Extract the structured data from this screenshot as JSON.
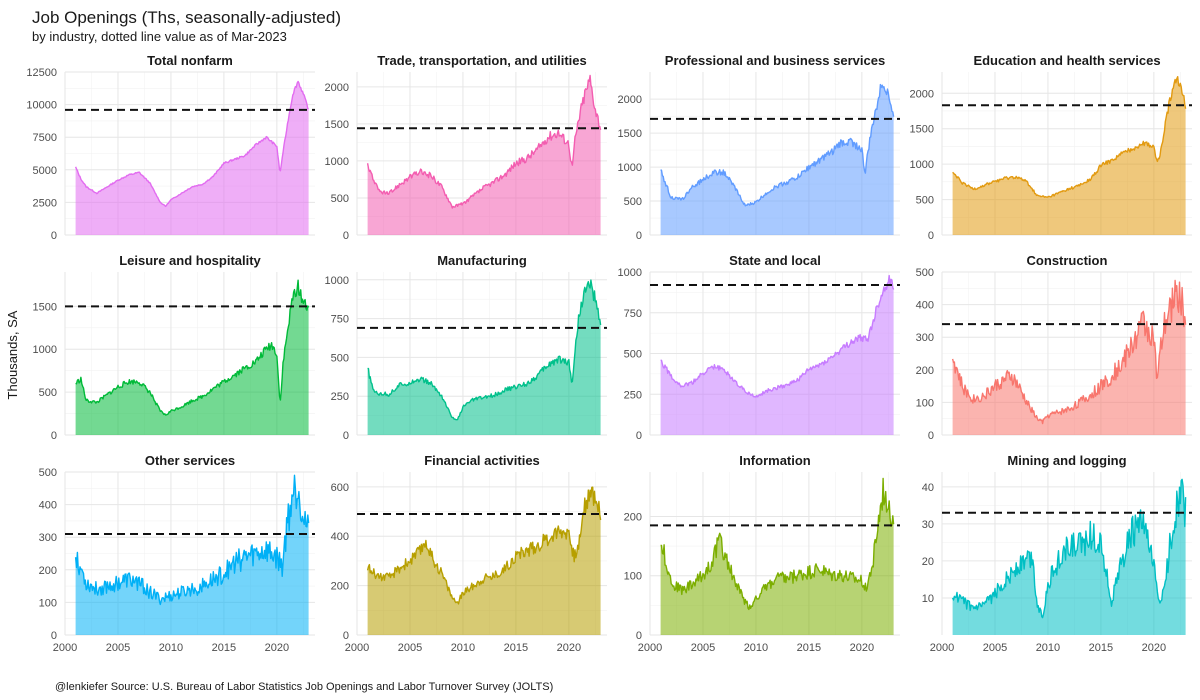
{
  "title": "Job Openings (Ths, seasonally-adjusted)",
  "subtitle": "by industry, dotted line value as of Mar-2023",
  "ylabel": "Thousands, SA",
  "caption": "@lenkiefer Source: U.S. Bureau of Labor Statistics Job Openings and Labor Turnover Survey (JOLTS)",
  "chart_data": {
    "type": "area",
    "facet_layout": "4 columns x 3 rows, free y scales, shared x",
    "xlim": [
      2000,
      2023.6
    ],
    "x_ticks": [
      2000,
      2005,
      2010,
      2015,
      2020
    ],
    "reference_line_style": "dashed",
    "panels": [
      {
        "name": "Total nonfarm",
        "color": "#e26cf0",
        "ref": 9600,
        "ylim": [
          0,
          12500
        ],
        "yticks": [
          0,
          2500,
          5000,
          7500,
          10000,
          12500
        ],
        "noise": 0.012,
        "x": [
          2001,
          2001.5,
          2002,
          2003,
          2004,
          2005,
          2006,
          2007,
          2008,
          2009,
          2009.5,
          2010,
          2011,
          2012,
          2013,
          2014,
          2015,
          2016,
          2017,
          2018,
          2019,
          2020,
          2020.3,
          2020.5,
          2021,
          2021.5,
          2022,
          2022.5,
          2023
        ],
        "y": [
          5200,
          4300,
          3700,
          3200,
          3700,
          4200,
          4600,
          4800,
          4000,
          2500,
          2200,
          2700,
          3200,
          3700,
          3900,
          4500,
          5500,
          5800,
          6100,
          6900,
          7500,
          6800,
          4700,
          5900,
          8500,
          10800,
          11800,
          10800,
          9600
        ]
      },
      {
        "name": "Trade, transportation, and utilities",
        "color": "#f35db0",
        "ref": 1440,
        "ylim": [
          0,
          2200
        ],
        "yticks": [
          0,
          500,
          1000,
          1500,
          2000
        ],
        "noise": 0.05,
        "x": [
          2001,
          2002,
          2003,
          2004,
          2005,
          2006,
          2007,
          2008,
          2009,
          2010,
          2011,
          2012,
          2013,
          2014,
          2015,
          2016,
          2017,
          2018,
          2019,
          2020,
          2020.3,
          2020.6,
          2021,
          2021.5,
          2022,
          2022.5,
          2023
        ],
        "y": [
          950,
          600,
          550,
          680,
          780,
          850,
          800,
          650,
          380,
          420,
          530,
          640,
          720,
          820,
          970,
          1030,
          1150,
          1320,
          1380,
          1230,
          900,
          1300,
          1600,
          1900,
          2100,
          1700,
          1440
        ]
      },
      {
        "name": "Professional and business services",
        "color": "#619cff",
        "ref": 1710,
        "ylim": [
          0,
          2400
        ],
        "yticks": [
          0,
          500,
          1000,
          1500,
          2000
        ],
        "noise": 0.045,
        "x": [
          2001,
          2002,
          2003,
          2004,
          2005,
          2006,
          2007,
          2008,
          2009,
          2010,
          2011,
          2012,
          2013,
          2014,
          2015,
          2016,
          2017,
          2018,
          2019,
          2020,
          2020.3,
          2020.6,
          2021,
          2021.5,
          2022,
          2022.5,
          2023
        ],
        "y": [
          950,
          550,
          520,
          700,
          820,
          920,
          920,
          700,
          430,
          480,
          620,
          720,
          780,
          860,
          1000,
          1100,
          1200,
          1350,
          1380,
          1250,
          900,
          1250,
          1600,
          2000,
          2250,
          2100,
          1710
        ]
      },
      {
        "name": "Education and health services",
        "color": "#e29a10",
        "ref": 1830,
        "ylim": [
          0,
          2300
        ],
        "yticks": [
          0,
          500,
          1000,
          1500,
          2000
        ],
        "noise": 0.03,
        "x": [
          2001,
          2002,
          2003,
          2004,
          2005,
          2006,
          2007,
          2008,
          2009,
          2010,
          2011,
          2012,
          2013,
          2014,
          2015,
          2016,
          2017,
          2018,
          2019,
          2020,
          2020.3,
          2020.6,
          2021,
          2021.5,
          2022,
          2022.5,
          2023
        ],
        "y": [
          880,
          720,
          650,
          700,
          760,
          800,
          820,
          750,
          550,
          530,
          590,
          650,
          700,
          780,
          980,
          1050,
          1150,
          1220,
          1300,
          1250,
          1000,
          1150,
          1500,
          1900,
          2200,
          2150,
          1830
        ]
      },
      {
        "name": "Leisure and hospitality",
        "color": "#00ba38",
        "ref": 1500,
        "ylim": [
          0,
          1900
        ],
        "yticks": [
          0,
          500,
          1000,
          1500
        ],
        "noise": 0.05,
        "x": [
          2001,
          2001.5,
          2002,
          2003,
          2004,
          2005,
          2006,
          2007,
          2008,
          2009,
          2009.5,
          2010,
          2011,
          2012,
          2013,
          2014,
          2015,
          2016,
          2017,
          2018,
          2019,
          2019.5,
          2020,
          2020.3,
          2020.6,
          2021,
          2021.5,
          2022,
          2022.5,
          2023
        ],
        "y": [
          600,
          650,
          400,
          380,
          470,
          560,
          620,
          620,
          500,
          280,
          230,
          280,
          330,
          400,
          450,
          540,
          620,
          700,
          780,
          850,
          1000,
          1050,
          950,
          350,
          850,
          1200,
          1600,
          1750,
          1550,
          1500
        ]
      },
      {
        "name": "Manufacturing",
        "color": "#00c08b",
        "ref": 690,
        "ylim": [
          0,
          1050
        ],
        "yticks": [
          0,
          250,
          500,
          750,
          1000
        ],
        "noise": 0.05,
        "x": [
          2001,
          2001.5,
          2002,
          2003,
          2004,
          2005,
          2006,
          2007,
          2008,
          2009,
          2009.5,
          2010,
          2011,
          2012,
          2013,
          2014,
          2015,
          2016,
          2017,
          2018,
          2019,
          2020,
          2020.3,
          2020.6,
          2021,
          2021.5,
          2022,
          2022.5,
          2023
        ],
        "y": [
          430,
          290,
          270,
          260,
          320,
          340,
          360,
          330,
          250,
          110,
          100,
          180,
          230,
          240,
          260,
          290,
          310,
          330,
          380,
          450,
          490,
          470,
          330,
          550,
          800,
          920,
          980,
          870,
          690
        ]
      },
      {
        "name": "State and local",
        "color": "#c77cff",
        "ref": 920,
        "ylim": [
          0,
          1000
        ],
        "yticks": [
          0,
          250,
          500,
          750,
          1000
        ],
        "noise": 0.04,
        "x": [
          2001,
          2002,
          2003,
          2004,
          2005,
          2006,
          2007,
          2008,
          2009,
          2010,
          2011,
          2012,
          2013,
          2014,
          2015,
          2016,
          2017,
          2018,
          2019,
          2020,
          2020.5,
          2021,
          2021.5,
          2022,
          2022.5,
          2023
        ],
        "y": [
          460,
          360,
          300,
          320,
          380,
          420,
          400,
          330,
          270,
          230,
          270,
          290,
          310,
          340,
          400,
          430,
          470,
          520,
          570,
          600,
          580,
          680,
          800,
          880,
          950,
          920
        ]
      },
      {
        "name": "Construction",
        "color": "#f8766d",
        "ref": 340,
        "ylim": [
          0,
          500
        ],
        "yticks": [
          0,
          100,
          200,
          300,
          400,
          500
        ],
        "noise": 0.14,
        "x": [
          2001,
          2002,
          2003,
          2004,
          2005,
          2006,
          2006.5,
          2007,
          2008,
          2009,
          2009.5,
          2010,
          2011,
          2012,
          2013,
          2014,
          2015,
          2016,
          2017,
          2018,
          2019,
          2019.5,
          2020,
          2020.3,
          2020.6,
          2021,
          2021.5,
          2022,
          2022.5,
          2023
        ],
        "y": [
          240,
          140,
          110,
          120,
          150,
          170,
          180,
          160,
          100,
          50,
          40,
          60,
          70,
          80,
          100,
          120,
          150,
          180,
          220,
          280,
          350,
          320,
          300,
          160,
          250,
          330,
          380,
          430,
          430,
          340
        ]
      },
      {
        "name": "Other services",
        "color": "#00b0f6",
        "ref": 310,
        "ylim": [
          0,
          500
        ],
        "yticks": [
          0,
          100,
          200,
          300,
          400,
          500
        ],
        "noise": 0.16,
        "x": [
          2001,
          2002,
          2003,
          2004,
          2005,
          2006,
          2007,
          2008,
          2009,
          2010,
          2011,
          2012,
          2013,
          2014,
          2015,
          2016,
          2017,
          2018,
          2019,
          2020,
          2020.5,
          2021,
          2021.5,
          2022,
          2022.5,
          2023
        ],
        "y": [
          250,
          160,
          140,
          150,
          160,
          170,
          160,
          130,
          110,
          120,
          130,
          140,
          150,
          170,
          190,
          220,
          240,
          250,
          260,
          240,
          210,
          350,
          440,
          460,
          380,
          310
        ]
      },
      {
        "name": "Financial activities",
        "color": "#b79f00",
        "ref": 490,
        "ylim": [
          0,
          660
        ],
        "yticks": [
          0,
          200,
          400,
          600
        ],
        "noise": 0.08,
        "x": [
          2001,
          2002,
          2003,
          2004,
          2005,
          2006,
          2006.5,
          2007,
          2008,
          2009,
          2009.5,
          2010,
          2011,
          2012,
          2013,
          2014,
          2015,
          2016,
          2017,
          2018,
          2019,
          2020,
          2020.5,
          2021,
          2021.5,
          2022,
          2022.5,
          2023
        ],
        "y": [
          270,
          240,
          230,
          270,
          300,
          340,
          380,
          320,
          250,
          150,
          130,
          170,
          200,
          230,
          240,
          270,
          320,
          340,
          360,
          390,
          420,
          420,
          310,
          380,
          520,
          580,
          560,
          490
        ]
      },
      {
        "name": "Information",
        "color": "#7cae00",
        "ref": 185,
        "ylim": [
          0,
          275
        ],
        "yticks": [
          0,
          100,
          200
        ],
        "noise": 0.12,
        "x": [
          2001,
          2002,
          2003,
          2004,
          2005,
          2006,
          2006.5,
          2007,
          2008,
          2009,
          2009.5,
          2010,
          2011,
          2012,
          2013,
          2014,
          2015,
          2016,
          2017,
          2018,
          2019,
          2020,
          2020.5,
          2021,
          2021.5,
          2022,
          2022.5,
          2023
        ],
        "y": [
          160,
          90,
          75,
          85,
          100,
          130,
          160,
          140,
          90,
          55,
          45,
          65,
          80,
          95,
          95,
          100,
          105,
          110,
          100,
          100,
          95,
          90,
          80,
          120,
          180,
          240,
          230,
          185
        ]
      },
      {
        "name": "Mining and logging",
        "color": "#00bfc4",
        "ref": 33,
        "ylim": [
          0,
          44
        ],
        "yticks": [
          10,
          20,
          30,
          40
        ],
        "noise": 0.16,
        "x": [
          2001,
          2002,
          2003,
          2004,
          2005,
          2006,
          2007,
          2008,
          2008.5,
          2009,
          2009.5,
          2010,
          2011,
          2012,
          2013,
          2014,
          2015,
          2016,
          2017,
          2018,
          2019,
          2020,
          2020.5,
          2021,
          2021.5,
          2022,
          2022.5,
          2023
        ],
        "y": [
          11,
          9,
          7,
          8,
          11,
          15,
          18,
          20,
          21,
          8,
          5,
          14,
          20,
          24,
          24,
          27,
          25,
          9,
          20,
          28,
          30,
          18,
          9,
          12,
          24,
          33,
          40,
          33
        ]
      }
    ]
  }
}
